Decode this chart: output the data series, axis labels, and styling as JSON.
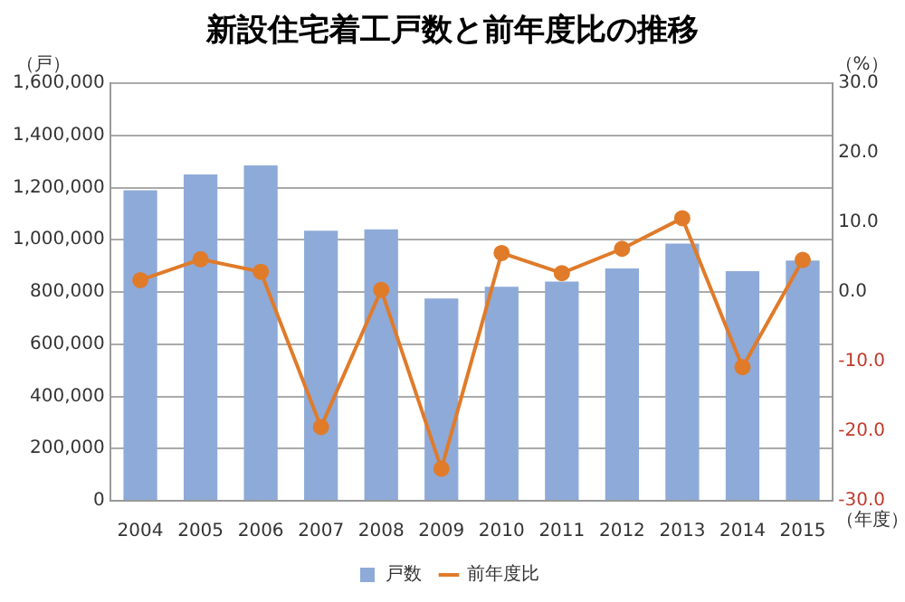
{
  "chart_data": {
    "type": "bar",
    "title": "新設住宅着工戸数と前年度比の推移",
    "xlabel": "（年度）",
    "ylabel": "（戸）",
    "y2label": "（%）",
    "categories": [
      "2004",
      "2005",
      "2006",
      "2007",
      "2008",
      "2009",
      "2010",
      "2011",
      "2012",
      "2013",
      "2014",
      "2015"
    ],
    "series": [
      {
        "name": "戸数",
        "color": "#8eaad8",
        "values": [
          1190000,
          1250000,
          1285000,
          1035000,
          1040000,
          775000,
          820000,
          840000,
          890000,
          985000,
          880000,
          920000
        ]
      },
      {
        "name": "前年度比",
        "type": "line",
        "axis": "y2",
        "color": "#e07b2a",
        "marker": "circle",
        "values": [
          1.7,
          4.7,
          2.9,
          -19.4,
          0.3,
          -25.4,
          5.6,
          2.7,
          6.2,
          10.6,
          -10.8,
          4.6
        ]
      }
    ],
    "ylim": [
      0,
      1600000
    ],
    "yticks": [
      {
        "value": 0,
        "label": "0"
      },
      {
        "value": 200000,
        "label": "200,000"
      },
      {
        "value": 400000,
        "label": "400,000"
      },
      {
        "value": 600000,
        "label": "600,000"
      },
      {
        "value": 800000,
        "label": "800,000"
      },
      {
        "value": 1000000,
        "label": "1,000,000"
      },
      {
        "value": 1200000,
        "label": "1,200,000"
      },
      {
        "value": 1400000,
        "label": "1,400,000"
      },
      {
        "value": 1600000,
        "label": "1,600,000"
      }
    ],
    "y2lim": [
      -30,
      30
    ],
    "y2ticks": [
      {
        "value": -30,
        "label": "-30.0"
      },
      {
        "value": -20,
        "label": "-20.0"
      },
      {
        "value": -10,
        "label": "-10.0"
      },
      {
        "value": 0,
        "label": "0.0"
      },
      {
        "value": 10,
        "label": "10.0"
      },
      {
        "value": 20,
        "label": "20.0"
      },
      {
        "value": 30,
        "label": "30.0"
      }
    ],
    "grid": "y",
    "legend": "bottom"
  }
}
